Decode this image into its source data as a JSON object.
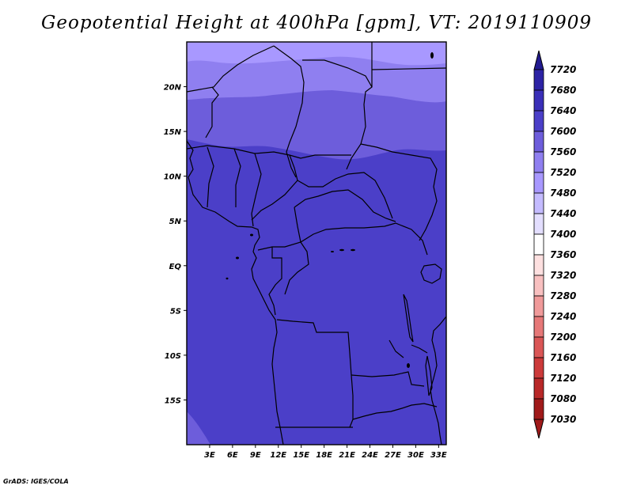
{
  "title": "Geopotential Height at 400hPa [gpm], VT: 2019110909",
  "footer": "GrADS: IGES/COLA",
  "colors": {
    "band_7480_7520": "#a898ff",
    "band_7520_7560": "#8f7ff0",
    "band_7560_7600": "#6d5ddb",
    "band_7600_7640": "#4b3fc8",
    "coast": "#000000"
  },
  "map": {
    "lon_range": [
      0,
      34
    ],
    "lat_range": [
      -20,
      25
    ],
    "lon_ticks": [
      "3E",
      "6E",
      "9E",
      "12E",
      "15E",
      "18E",
      "21E",
      "24E",
      "27E",
      "30E",
      "33E"
    ],
    "lat_ticks": [
      "20N",
      "15N",
      "10N",
      "5N",
      "EQ",
      "5S",
      "10S",
      "15S"
    ]
  },
  "colorbar": {
    "levels": [
      "7720",
      "7680",
      "7640",
      "7600",
      "7560",
      "7520",
      "7480",
      "7440",
      "7400",
      "7360",
      "7320",
      "7280",
      "7240",
      "7200",
      "7160",
      "7120",
      "7080",
      "7030"
    ],
    "colors": [
      "#221a90",
      "#2d23a5",
      "#3a2fb8",
      "#4b3fc8",
      "#6d5ddb",
      "#8f7ff0",
      "#a898ff",
      "#c4bbff",
      "#e3defe",
      "#ffffff",
      "#fde0e0",
      "#f8c0c0",
      "#f09a9a",
      "#e67878",
      "#da5656",
      "#cc3a3a",
      "#b82828",
      "#a01a1a"
    ]
  }
}
